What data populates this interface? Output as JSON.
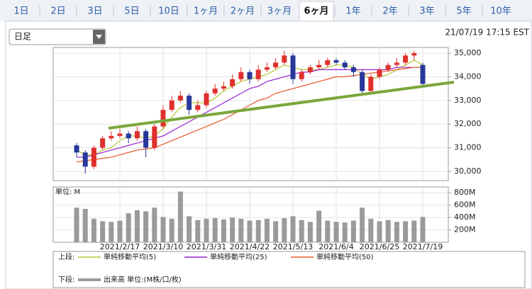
{
  "tabs": [
    "1日",
    "2日",
    "3日",
    "5日",
    "10日",
    "1ヶ月",
    "2ヶ月",
    "3ヶ月",
    "6ヶ月",
    "1年",
    "2年",
    "3年",
    "5年",
    "10年"
  ],
  "active_tab": 8,
  "dropdown": "日足",
  "timestamp": "21/07/19 17:15 EST",
  "chart_data": [
    {
      "type": "candlestick",
      "legend_label": "上段:",
      "categories": [
        null,
        null,
        null,
        null,
        null,
        "2021/2/17",
        null,
        null,
        null,
        null,
        "2021/3/10",
        null,
        null,
        null,
        null,
        "2021/3/31",
        null,
        null,
        null,
        null,
        "2021/4/22",
        null,
        null,
        null,
        null,
        "2021/5/13",
        null,
        null,
        null,
        null,
        "2021/6/4",
        null,
        null,
        null,
        null,
        "2021/6/25",
        null,
        null,
        null,
        null,
        "2021/7/19"
      ],
      "open": [
        31100,
        30800,
        30200,
        31000,
        31400,
        31500,
        31600,
        31400,
        31700,
        31000,
        31900,
        32600,
        33000,
        33200,
        32600,
        32800,
        33300,
        33500,
        33600,
        33900,
        34200,
        33900,
        34300,
        34400,
        34600,
        34900,
        33900,
        34200,
        34400,
        34500,
        34700,
        34600,
        34400,
        34200,
        33400,
        34000,
        34300,
        34500,
        34600,
        34900,
        34500
      ],
      "high": [
        31200,
        30900,
        31100,
        31500,
        31700,
        31800,
        31700,
        31900,
        31800,
        32000,
        32800,
        33200,
        33400,
        33300,
        33000,
        33400,
        33700,
        33800,
        34100,
        34400,
        34300,
        34500,
        34600,
        34800,
        35100,
        35000,
        34300,
        34500,
        34700,
        34800,
        34800,
        34700,
        34500,
        34300,
        34100,
        34400,
        34600,
        34800,
        35000,
        35100,
        34600
      ],
      "low": [
        30600,
        29900,
        30100,
        30900,
        31300,
        31400,
        31200,
        31300,
        30600,
        30900,
        31800,
        32500,
        32900,
        32400,
        32500,
        32700,
        33200,
        33400,
        33500,
        33800,
        33700,
        33800,
        34200,
        34300,
        34500,
        33700,
        33800,
        34100,
        34300,
        34400,
        34500,
        34300,
        34000,
        33200,
        33300,
        33900,
        34200,
        34400,
        34500,
        34700,
        33600
      ],
      "close": [
        30800,
        30200,
        31000,
        31400,
        31500,
        31600,
        31400,
        31700,
        31000,
        31900,
        32600,
        33000,
        33200,
        32600,
        32800,
        33300,
        33500,
        33600,
        33900,
        34200,
        33900,
        34300,
        34400,
        34600,
        34900,
        33900,
        34200,
        34400,
        34500,
        34700,
        34600,
        34400,
        34200,
        33400,
        34000,
        34300,
        34500,
        34600,
        34900,
        35000,
        33700
      ],
      "up_color": "#e0302c",
      "down_color": "#27389a",
      "series": [
        {
          "name": "単純移動平均(5)",
          "color": "#b5c832",
          "values": [
            30900,
            30700,
            30700,
            30900,
            31000,
            31300,
            31500,
            31500,
            31400,
            31500,
            31800,
            32300,
            32700,
            32900,
            32900,
            32900,
            33100,
            33400,
            33600,
            33800,
            33900,
            34000,
            34100,
            34300,
            34500,
            34400,
            34300,
            34300,
            34300,
            34400,
            34500,
            34500,
            34400,
            34100,
            33900,
            34000,
            34100,
            34300,
            34500,
            34700,
            34500
          ]
        },
        {
          "name": "単純移動平均(25)",
          "color": "#9b22d6",
          "values": [
            30600,
            30600,
            30700,
            30800,
            30900,
            31000,
            31100,
            31200,
            31300,
            31400,
            31500,
            31700,
            31900,
            32100,
            32300,
            32500,
            32700,
            32900,
            33100,
            33300,
            33500,
            33600,
            33800,
            33900,
            34000,
            34100,
            34200,
            34200,
            34300,
            34300,
            34300,
            34300,
            34300,
            34300,
            34300,
            34300,
            34300,
            34400,
            34400,
            34400,
            34400
          ]
        },
        {
          "name": "単純移動平均(50)",
          "color": "#e8582a",
          "values": [
            30400,
            30450,
            30500,
            30550,
            30600,
            30700,
            30800,
            30900,
            30950,
            31000,
            31150,
            31300,
            31450,
            31600,
            31750,
            31900,
            32050,
            32200,
            32400,
            32600,
            32800,
            33000,
            33100,
            33300,
            33400,
            33500,
            33600,
            33700,
            33800,
            33900,
            34000,
            34000,
            34050,
            34100,
            34150,
            34200,
            34250,
            34300,
            34350,
            34400,
            34400
          ]
        }
      ],
      "ylim": [
        29610,
        35240
      ],
      "yticks": [
        {
          "value": 30000,
          "label": "30,000"
        },
        {
          "value": 31000,
          "label": "31,000"
        },
        {
          "value": 32000,
          "label": "32,000"
        },
        {
          "value": 33000,
          "label": "33,000"
        },
        {
          "value": 34000,
          "label": "34,000"
        },
        {
          "value": 35000,
          "label": "35,000"
        }
      ],
      "grid": true
    },
    {
      "type": "bar",
      "legend_label": "下段:",
      "y_label": "単位: M",
      "series": [
        {
          "name": "出来高 単位:(M株/口/枚)",
          "color": "#9a9a9a",
          "values": [
            560,
            540,
            380,
            340,
            330,
            350,
            470,
            520,
            500,
            560,
            410,
            380,
            820,
            420,
            360,
            380,
            390,
            370,
            400,
            380,
            350,
            360,
            380,
            340,
            390,
            420,
            360,
            330,
            510,
            350,
            330,
            320,
            350,
            560,
            380,
            340,
            360,
            330,
            340,
            350,
            410
          ]
        }
      ],
      "ylim": [
        0,
        894
      ],
      "yticks": [
        {
          "value": 200,
          "label": "200M"
        },
        {
          "value": 400,
          "label": "400M"
        },
        {
          "value": 600,
          "label": "600M"
        },
        {
          "value": 800,
          "label": "800M"
        }
      ],
      "grid": true
    }
  ]
}
